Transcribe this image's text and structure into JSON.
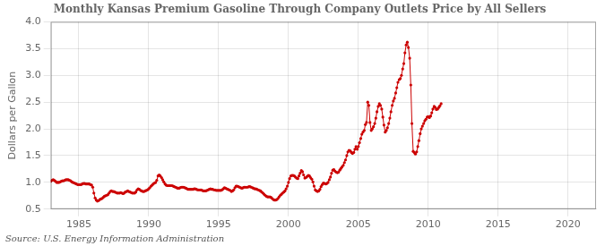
{
  "chart_data": {
    "type": "line",
    "title": "Monthly Kansas Premium Gasoline Through Company Outlets Price by All Sellers",
    "ylabel": "Dollars per Gallon",
    "annotations": [
      "Source: U.S. Energy Information Administration"
    ],
    "color": "#cc0000",
    "marker": "circle",
    "grid": true,
    "xlim": [
      1983,
      2022
    ],
    "ylim": [
      0.5,
      4.0
    ],
    "xticks": [
      1985,
      1990,
      1995,
      2000,
      2005,
      2010,
      2015,
      2020
    ],
    "yticks": [
      0.5,
      {
        "value": 1.0,
        "label": "1.0"
      },
      1.5,
      {
        "value": 2.0,
        "label": "2.0"
      },
      2.5,
      {
        "value": 3.0,
        "label": "3.0"
      },
      3.5,
      {
        "value": 4.0,
        "label": "4.0"
      }
    ],
    "x": [
      1983.0,
      1983.08,
      1983.17,
      1983.25,
      1983.33,
      1983.42,
      1983.5,
      1983.58,
      1983.67,
      1983.75,
      1983.83,
      1983.92,
      1984.0,
      1984.08,
      1984.17,
      1984.25,
      1984.33,
      1984.42,
      1984.5,
      1984.58,
      1984.67,
      1984.75,
      1984.83,
      1984.92,
      1985.0,
      1985.08,
      1985.17,
      1985.25,
      1985.33,
      1985.42,
      1985.5,
      1985.58,
      1985.67,
      1985.75,
      1985.83,
      1985.92,
      1986.0,
      1986.08,
      1986.17,
      1986.25,
      1986.33,
      1986.42,
      1986.5,
      1986.58,
      1986.67,
      1986.75,
      1986.83,
      1986.92,
      1987.0,
      1987.08,
      1987.17,
      1987.25,
      1987.33,
      1987.42,
      1987.5,
      1987.58,
      1987.67,
      1987.75,
      1987.83,
      1987.92,
      1988.0,
      1988.08,
      1988.17,
      1988.25,
      1988.33,
      1988.42,
      1988.5,
      1988.58,
      1988.67,
      1988.75,
      1988.83,
      1988.92,
      1989.0,
      1989.08,
      1989.17,
      1989.25,
      1989.33,
      1989.42,
      1989.5,
      1989.58,
      1989.67,
      1989.75,
      1989.83,
      1989.92,
      1990.0,
      1990.08,
      1990.17,
      1990.25,
      1990.33,
      1990.42,
      1990.5,
      1990.58,
      1990.67,
      1990.75,
      1990.83,
      1990.92,
      1991.0,
      1991.08,
      1991.17,
      1991.25,
      1991.33,
      1991.42,
      1991.5,
      1991.58,
      1991.67,
      1991.75,
      1991.83,
      1991.92,
      1992.0,
      1992.08,
      1992.17,
      1992.25,
      1992.33,
      1992.42,
      1992.5,
      1992.58,
      1992.67,
      1992.75,
      1992.83,
      1992.92,
      1993.0,
      1993.08,
      1993.17,
      1993.25,
      1993.33,
      1993.42,
      1993.5,
      1993.58,
      1993.67,
      1993.75,
      1993.83,
      1993.92,
      1994.0,
      1994.08,
      1994.17,
      1994.25,
      1994.33,
      1994.42,
      1994.5,
      1994.58,
      1994.67,
      1994.75,
      1994.83,
      1994.92,
      1995.0,
      1995.08,
      1995.17,
      1995.25,
      1995.33,
      1995.42,
      1995.5,
      1995.58,
      1995.67,
      1995.75,
      1995.83,
      1995.92,
      1996.0,
      1996.08,
      1996.17,
      1996.25,
      1996.33,
      1996.42,
      1996.5,
      1996.58,
      1996.67,
      1996.75,
      1996.83,
      1996.92,
      1997.0,
      1997.08,
      1997.17,
      1997.25,
      1997.33,
      1997.42,
      1997.5,
      1997.58,
      1997.67,
      1997.75,
      1997.83,
      1997.92,
      1998.0,
      1998.08,
      1998.17,
      1998.25,
      1998.33,
      1998.42,
      1998.5,
      1998.58,
      1998.67,
      1998.75,
      1998.83,
      1998.92,
      1999.0,
      1999.08,
      1999.17,
      1999.25,
      1999.33,
      1999.42,
      1999.5,
      1999.58,
      1999.67,
      1999.75,
      1999.83,
      1999.92,
      2000.0,
      2000.08,
      2000.17,
      2000.25,
      2000.33,
      2000.42,
      2000.5,
      2000.58,
      2000.67,
      2000.75,
      2000.83,
      2000.92,
      2001.0,
      2001.08,
      2001.17,
      2001.25,
      2001.33,
      2001.42,
      2001.5,
      2001.58,
      2001.67,
      2001.75,
      2001.83,
      2001.92,
      2002.0,
      2002.08,
      2002.17,
      2002.25,
      2002.33,
      2002.42,
      2002.5,
      2002.58,
      2002.67,
      2002.75,
      2002.83,
      2002.92,
      2003.0,
      2003.08,
      2003.17,
      2003.25,
      2003.33,
      2003.42,
      2003.5,
      2003.58,
      2003.67,
      2003.75,
      2003.83,
      2003.92,
      2004.0,
      2004.08,
      2004.17,
      2004.25,
      2004.33,
      2004.42,
      2004.5,
      2004.58,
      2004.67,
      2004.75,
      2004.83,
      2004.92,
      2005.0,
      2005.08,
      2005.17,
      2005.25,
      2005.33,
      2005.42,
      2005.5,
      2005.58,
      2005.67,
      2005.75,
      2005.83,
      2005.92,
      2006.0,
      2006.08,
      2006.17,
      2006.25,
      2006.33,
      2006.42,
      2006.5,
      2006.58,
      2006.67,
      2006.75,
      2006.83,
      2006.92,
      2007.0,
      2007.08,
      2007.17,
      2007.25,
      2007.33,
      2007.42,
      2007.5,
      2007.58,
      2007.67,
      2007.75,
      2007.83,
      2007.92,
      2008.0,
      2008.08,
      2008.17,
      2008.25,
      2008.33,
      2008.42,
      2008.5,
      2008.58,
      2008.67,
      2008.75,
      2008.83,
      2008.92,
      2009.0,
      2009.08,
      2009.17,
      2009.25,
      2009.33,
      2009.42,
      2009.5,
      2009.58,
      2009.67,
      2009.75,
      2009.83,
      2009.92,
      2010.0,
      2010.08,
      2010.17,
      2010.25,
      2010.33,
      2010.42,
      2010.5,
      2010.58,
      2010.67,
      2010.75,
      2010.83,
      2010.92
    ],
    "values": [
      1.02,
      1.04,
      1.05,
      1.04,
      1.02,
      1.0,
      1.0,
      1.0,
      1.01,
      1.02,
      1.03,
      1.03,
      1.04,
      1.05,
      1.05,
      1.05,
      1.04,
      1.03,
      1.01,
      1.0,
      0.99,
      0.98,
      0.97,
      0.96,
      0.96,
      0.96,
      0.96,
      0.97,
      0.98,
      0.98,
      0.97,
      0.97,
      0.97,
      0.97,
      0.96,
      0.95,
      0.91,
      0.8,
      0.71,
      0.67,
      0.65,
      0.66,
      0.68,
      0.69,
      0.7,
      0.72,
      0.74,
      0.75,
      0.76,
      0.77,
      0.8,
      0.83,
      0.84,
      0.83,
      0.83,
      0.82,
      0.81,
      0.8,
      0.8,
      0.8,
      0.81,
      0.8,
      0.79,
      0.8,
      0.82,
      0.83,
      0.84,
      0.83,
      0.82,
      0.81,
      0.8,
      0.8,
      0.8,
      0.82,
      0.86,
      0.88,
      0.87,
      0.85,
      0.84,
      0.83,
      0.83,
      0.84,
      0.85,
      0.86,
      0.88,
      0.9,
      0.93,
      0.95,
      0.97,
      0.99,
      1.0,
      1.04,
      1.12,
      1.14,
      1.12,
      1.09,
      1.05,
      1.01,
      0.97,
      0.95,
      0.94,
      0.94,
      0.94,
      0.94,
      0.94,
      0.93,
      0.92,
      0.91,
      0.9,
      0.89,
      0.89,
      0.9,
      0.91,
      0.91,
      0.91,
      0.9,
      0.89,
      0.88,
      0.87,
      0.87,
      0.87,
      0.87,
      0.87,
      0.88,
      0.88,
      0.87,
      0.86,
      0.86,
      0.86,
      0.86,
      0.85,
      0.84,
      0.84,
      0.84,
      0.85,
      0.86,
      0.87,
      0.88,
      0.87,
      0.87,
      0.86,
      0.86,
      0.85,
      0.85,
      0.85,
      0.85,
      0.85,
      0.86,
      0.88,
      0.9,
      0.89,
      0.88,
      0.87,
      0.86,
      0.85,
      0.83,
      0.84,
      0.86,
      0.9,
      0.93,
      0.93,
      0.92,
      0.91,
      0.9,
      0.89,
      0.9,
      0.91,
      0.91,
      0.91,
      0.91,
      0.92,
      0.92,
      0.91,
      0.9,
      0.89,
      0.88,
      0.88,
      0.87,
      0.86,
      0.85,
      0.84,
      0.82,
      0.8,
      0.78,
      0.76,
      0.74,
      0.73,
      0.73,
      0.73,
      0.72,
      0.7,
      0.68,
      0.67,
      0.67,
      0.68,
      0.7,
      0.73,
      0.76,
      0.78,
      0.8,
      0.82,
      0.84,
      0.88,
      0.93,
      1.0,
      1.07,
      1.12,
      1.13,
      1.13,
      1.12,
      1.1,
      1.08,
      1.07,
      1.12,
      1.17,
      1.22,
      1.2,
      1.14,
      1.08,
      1.09,
      1.11,
      1.13,
      1.12,
      1.09,
      1.06,
      1.01,
      0.93,
      0.86,
      0.84,
      0.83,
      0.84,
      0.87,
      0.92,
      0.96,
      0.99,
      0.98,
      0.97,
      0.98,
      1.0,
      1.05,
      1.1,
      1.17,
      1.23,
      1.24,
      1.21,
      1.19,
      1.18,
      1.19,
      1.23,
      1.26,
      1.29,
      1.32,
      1.37,
      1.42,
      1.5,
      1.57,
      1.6,
      1.59,
      1.56,
      1.54,
      1.56,
      1.62,
      1.67,
      1.62,
      1.67,
      1.74,
      1.82,
      1.9,
      1.94,
      1.97,
      2.08,
      2.12,
      2.5,
      2.44,
      2.12,
      1.97,
      2.0,
      2.04,
      2.1,
      2.2,
      2.32,
      2.42,
      2.47,
      2.44,
      2.37,
      2.22,
      2.07,
      1.94,
      1.97,
      2.02,
      2.1,
      2.2,
      2.32,
      2.44,
      2.52,
      2.57,
      2.67,
      2.77,
      2.87,
      2.92,
      2.94,
      3.0,
      3.12,
      3.22,
      3.42,
      3.57,
      3.62,
      3.52,
      3.32,
      2.82,
      2.1,
      1.58,
      1.56,
      1.53,
      1.57,
      1.67,
      1.78,
      1.91,
      2.0,
      2.05,
      2.1,
      2.15,
      2.18,
      2.22,
      2.23,
      2.21,
      2.24,
      2.3,
      2.37,
      2.42,
      2.4,
      2.36,
      2.37,
      2.4,
      2.43,
      2.47
    ]
  }
}
